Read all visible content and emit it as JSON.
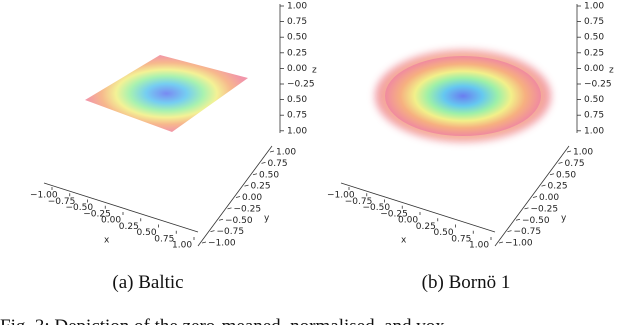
{
  "figure": {
    "panels": [
      {
        "caption": "(a) Baltic",
        "z_label": "z",
        "z_ticks": [
          "1.00",
          "0.75",
          "0.50",
          "0.25",
          "0.00",
          "−0.25",
          "0.50",
          "0.75",
          "1.00"
        ],
        "y_label": "y",
        "y_ticks": [
          "1.00",
          "0.75",
          "0.50",
          "0.25",
          "0.00",
          "−0.25",
          "−0.50",
          "−0.75",
          "−1.00"
        ],
        "x_label": "x",
        "x_ticks": [
          "−1.00",
          "−0.75",
          "−0.50",
          "−0.25",
          "0.00",
          "0.25",
          "0.50",
          "0.75",
          "1.00"
        ]
      },
      {
        "caption": "(b) Bornö 1",
        "z_label": "z",
        "z_ticks": [
          "1.00",
          "0.75",
          "0.50",
          "0.25",
          "0.00",
          "−0.25",
          "0.50",
          "0.75",
          "1.00"
        ],
        "y_label": "y",
        "y_ticks": [
          "1.00",
          "0.75",
          "0.50",
          "0.25",
          "0.00",
          "−0.25",
          "−0.50",
          "−0.75",
          "−1.00"
        ],
        "x_label": "x",
        "x_ticks": [
          "−1.00",
          "−0.75",
          "−0.50",
          "−0.25",
          "0.00",
          "0.25",
          "0.50",
          "0.75",
          "1.00"
        ]
      }
    ],
    "caption": "Fig. 3: Depiction of the zero-meaned, normalised, and vox"
  }
}
